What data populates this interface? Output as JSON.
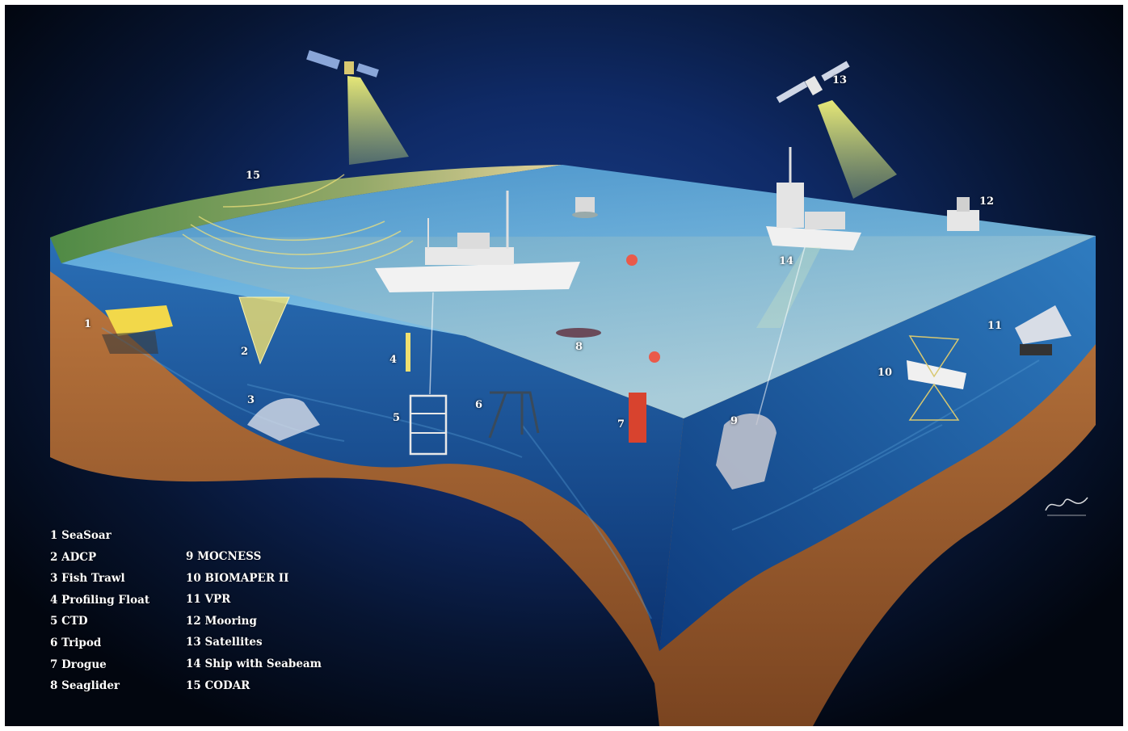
{
  "legend": {
    "col1": [
      "1 SeaSoar",
      "2 ADCP",
      "3 Fish Trawl",
      "4 Profiling Float",
      "5 CTD",
      "6 Tripod",
      "7 Drogue",
      "8 Seaglider"
    ],
    "col2": [
      "9 MOCNESS",
      "10 BIOMAPER II",
      "11 VPR",
      "12 Mooring",
      "13 Satellites",
      "14 Ship with Seabeam",
      "15 CODAR"
    ]
  },
  "markers": {
    "m1": "1",
    "m2": "2",
    "m3": "3",
    "m4": "4",
    "m5": "5",
    "m6": "6",
    "m7": "7",
    "m8": "8",
    "m9": "9",
    "m10": "10",
    "m11": "11",
    "m12": "12",
    "m13": "13",
    "m14": "14",
    "m15": "15"
  },
  "colors": {
    "sky_deep": "#02060f",
    "sky_mid": "#1a3f8a",
    "water_surface": "#7fc4e6",
    "water_deep": "#0d3f86",
    "seafloor": "#b06a35",
    "satellite_beam": "#e6e86a"
  }
}
